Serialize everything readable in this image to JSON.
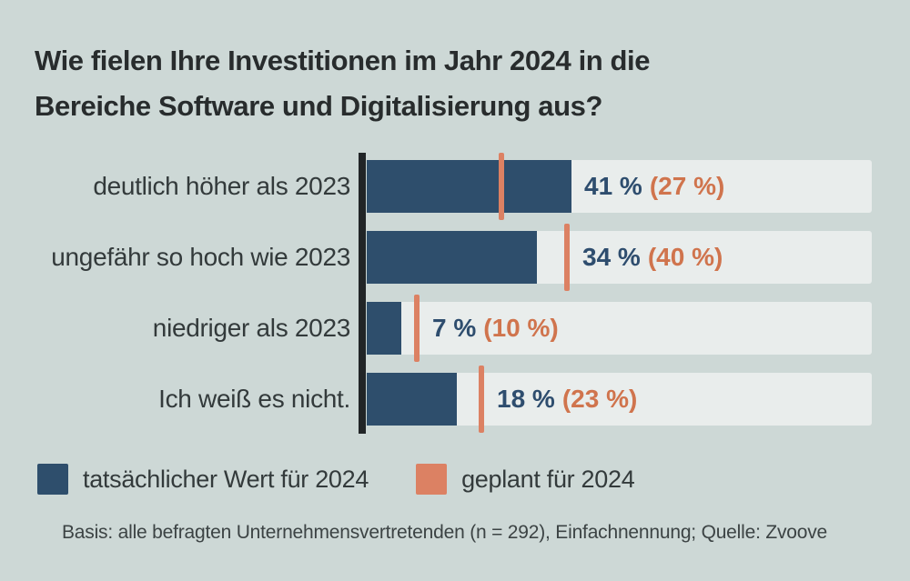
{
  "title": {
    "line1": "Wie fielen Ihre Investitionen im Jahr 2024 in die",
    "line2": "Bereiche Software und Digitalisierung aus?"
  },
  "chart_data": {
    "type": "bar",
    "orientation": "horizontal",
    "title": "Wie fielen Ihre Investitionen im Jahr 2024 in die Bereiche Software und Digitalisierung aus?",
    "categories": [
      "deutlich höher als 2023",
      "ungefähr so hoch wie 2023",
      "niedriger als 2023",
      "Ich weiß es nicht."
    ],
    "series": [
      {
        "name": "tatsächlicher Wert für 2024",
        "mark": "bar",
        "color": "#2e4e6c",
        "values": [
          41,
          34,
          7,
          18
        ]
      },
      {
        "name": "geplant für 2024",
        "mark": "tick",
        "color": "#dc8163",
        "values": [
          27,
          40,
          10,
          23
        ]
      }
    ],
    "value_labels": [
      "41 % (27 %)",
      "34 % (40 %)",
      "7 % (10 %)",
      "18 % (23 %)"
    ],
    "unit": "%",
    "xlim": [
      0,
      101
    ],
    "grid": false,
    "legend_position": "bottom-left"
  },
  "rows": [
    {
      "label": "deutlich höher als 2023",
      "actual": 41,
      "planned": 27,
      "actual_display": "41 %",
      "planned_display": "(27 %)"
    },
    {
      "label": "ungefähr so hoch wie 2023",
      "actual": 34,
      "planned": 40,
      "actual_display": "34 %",
      "planned_display": "(40 %)"
    },
    {
      "label": "niedriger als 2023",
      "actual": 7,
      "planned": 10,
      "actual_display": "7 %",
      "planned_display": "(10 %)"
    },
    {
      "label": "Ich weiß es nicht.",
      "actual": 18,
      "planned": 23,
      "actual_display": "18 %",
      "planned_display": "(23 %)"
    }
  ],
  "legend": {
    "items": [
      {
        "label": "tatsächlicher Wert für 2024",
        "color": "#2e4e6c"
      },
      {
        "label": "geplant für 2024",
        "color": "#dc8163"
      }
    ]
  },
  "footer": "Basis: alle befragten Unternehmensvertretenden (n = 292), Einfachnennung; Quelle: Zvoove",
  "colors": {
    "page-bg": "#cdd8d6",
    "track-bg": "#e9edec",
    "bar-actual": "#2e4e6c",
    "tick-planned": "#dc8163",
    "value-actual-text": "#2e4d6e",
    "value-planned-text": "#d0744d",
    "title-text": "#282c2d",
    "label-text": "#333a3b",
    "footer-text": "#3c4344",
    "axis-line": "#212527"
  }
}
